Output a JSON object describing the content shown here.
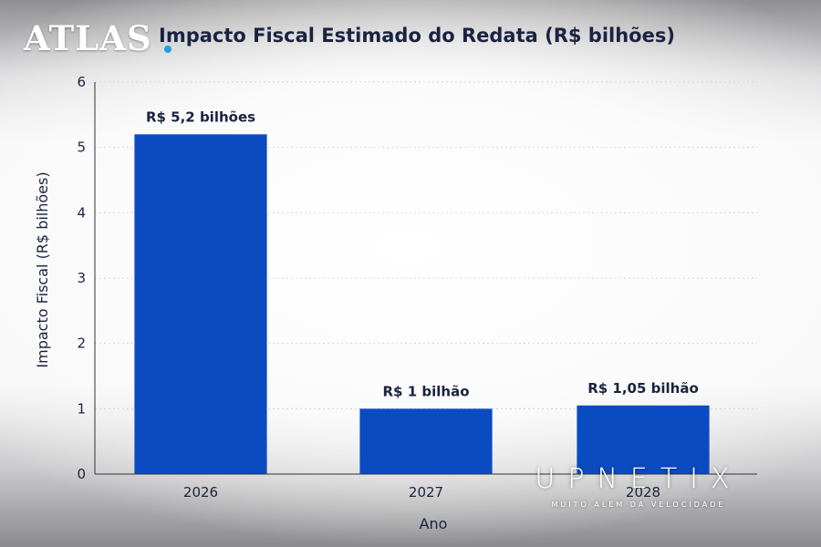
{
  "watermark": {
    "text": "ATLAS",
    "brand": "UPNETIX",
    "tagline": "MUITO ALÉM DA VELOCIDADE",
    "dot_color": "#1fa0e6"
  },
  "colors": {
    "bar": "#0b4bc2",
    "grid": "#d6d6d6",
    "text": "#1a2340"
  },
  "chart_data": {
    "type": "bar",
    "title": "Impacto Fiscal Estimado do Redata (R$ bilhões)",
    "xlabel": "Ano",
    "ylabel": "Impacto Fiscal (R$ bilhões)",
    "categories": [
      "2026",
      "2027",
      "2028"
    ],
    "values": [
      5.2,
      1.0,
      1.05
    ],
    "data_labels": [
      "R$ 5,2 bilhões",
      "R$ 1 bilhão",
      "R$ 1,05 bilhão"
    ],
    "ylim": [
      0,
      6
    ],
    "yticks": [
      0,
      1,
      2,
      3,
      4,
      5,
      6
    ],
    "grid": true,
    "legend": "none"
  }
}
